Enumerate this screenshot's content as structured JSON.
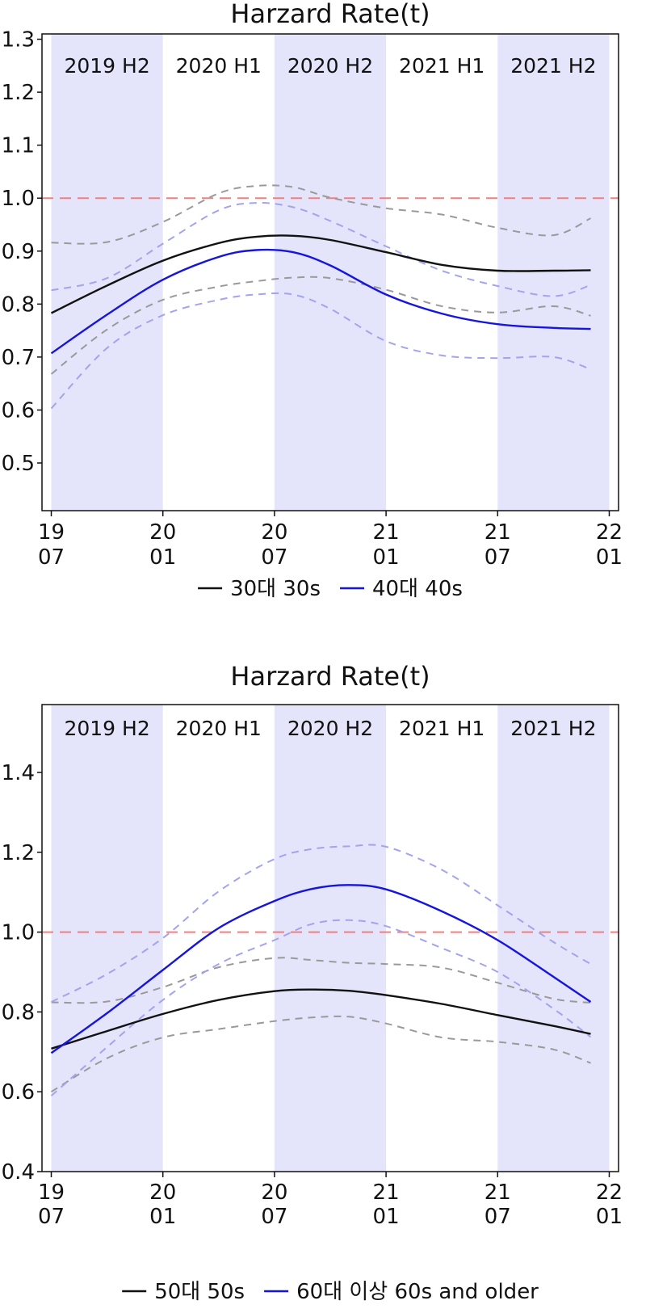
{
  "chart_data": [
    {
      "type": "line",
      "title": "Harzard Rate(t)",
      "xlabel": "",
      "ylabel": "",
      "x_ticks": [
        "19\n07",
        "20\n01",
        "20\n07",
        "21\n01",
        "21\n07",
        "22\n01"
      ],
      "x_tick_values": [
        0,
        6,
        12,
        18,
        24,
        30
      ],
      "xlim": [
        -0.5,
        30.5
      ],
      "ylim": [
        0.41,
        1.31
      ],
      "y_ticks": [
        0.5,
        0.6,
        0.7,
        0.8,
        0.9,
        1.0,
        1.1,
        1.2,
        1.3
      ],
      "y_tick_labels": [
        "0.5",
        "0.6",
        "0.7",
        "0.8",
        "0.9",
        "1.0",
        "1.1",
        "1.2",
        "1.3"
      ],
      "reference_line": {
        "y": 1.0,
        "color": "#f08080",
        "style": "dashed"
      },
      "period_bands": [
        {
          "label": "2019 H2",
          "from": 0,
          "to": 6,
          "shaded": true
        },
        {
          "label": "2020 H1",
          "from": 6,
          "to": 12,
          "shaded": false
        },
        {
          "label": "2020 H2",
          "from": 12,
          "to": 18,
          "shaded": true
        },
        {
          "label": "2021 H1",
          "from": 18,
          "to": 24,
          "shaded": false
        },
        {
          "label": "2021 H2",
          "from": 24,
          "to": 30,
          "shaded": true
        }
      ],
      "band_color": "#e4e4fa",
      "legend_position": "bottom",
      "series": [
        {
          "name": "30대 30s",
          "color": "#111111",
          "x": [
            0,
            3,
            6,
            9,
            11,
            13,
            15,
            18,
            21,
            24,
            27,
            29
          ],
          "values": [
            0.783,
            0.835,
            0.882,
            0.915,
            0.927,
            0.929,
            0.921,
            0.898,
            0.874,
            0.863,
            0.863,
            0.864
          ],
          "ci_lower": [
            0.668,
            0.752,
            0.808,
            0.833,
            0.843,
            0.85,
            0.849,
            0.827,
            0.796,
            0.784,
            0.796,
            0.778
          ],
          "ci_upper": [
            0.916,
            0.917,
            0.955,
            1.009,
            1.023,
            1.021,
            1.001,
            0.981,
            0.969,
            0.944,
            0.93,
            0.962
          ]
        },
        {
          "name": "40대 40s",
          "color": "#1515dd",
          "x": [
            0,
            3,
            6,
            9,
            11,
            13,
            15,
            18,
            21,
            24,
            27,
            29
          ],
          "values": [
            0.707,
            0.78,
            0.846,
            0.889,
            0.902,
            0.898,
            0.873,
            0.818,
            0.782,
            0.762,
            0.755,
            0.753
          ],
          "ci_lower": [
            0.603,
            0.717,
            0.779,
            0.808,
            0.818,
            0.818,
            0.791,
            0.73,
            0.703,
            0.698,
            0.7,
            0.677
          ],
          "ci_upper": [
            0.826,
            0.849,
            0.914,
            0.977,
            0.991,
            0.983,
            0.957,
            0.909,
            0.863,
            0.834,
            0.815,
            0.836
          ]
        }
      ]
    },
    {
      "type": "line",
      "title": "Harzard Rate(t)",
      "xlabel": "",
      "ylabel": "",
      "x_ticks": [
        "19\n07",
        "20\n01",
        "20\n07",
        "21\n01",
        "21\n07",
        "22\n01"
      ],
      "x_tick_values": [
        0,
        6,
        12,
        18,
        24,
        30
      ],
      "xlim": [
        -0.5,
        30.5
      ],
      "ylim": [
        0.4,
        1.57
      ],
      "y_ticks": [
        0.4,
        0.6,
        0.8,
        1.0,
        1.2,
        1.4
      ],
      "y_tick_labels": [
        "0.4",
        "0.6",
        "0.8",
        "1.0",
        "1.2",
        "1.4"
      ],
      "reference_line": {
        "y": 1.0,
        "color": "#f08080",
        "style": "dashed"
      },
      "period_bands": [
        {
          "label": "2019 H2",
          "from": 0,
          "to": 6,
          "shaded": true
        },
        {
          "label": "2020 H1",
          "from": 6,
          "to": 12,
          "shaded": false
        },
        {
          "label": "2020 H2",
          "from": 12,
          "to": 18,
          "shaded": true
        },
        {
          "label": "2021 H1",
          "from": 18,
          "to": 24,
          "shaded": false
        },
        {
          "label": "2021 H2",
          "from": 24,
          "to": 30,
          "shaded": true
        }
      ],
      "band_color": "#e4e4fa",
      "legend_position": "bottom",
      "series": [
        {
          "name": "50대 50s",
          "color": "#111111",
          "x": [
            0,
            3,
            6,
            9,
            12,
            14,
            16,
            18,
            21,
            24,
            27,
            29
          ],
          "values": [
            0.708,
            0.752,
            0.795,
            0.83,
            0.852,
            0.856,
            0.853,
            0.842,
            0.82,
            0.792,
            0.765,
            0.745
          ],
          "ci_lower": [
            0.6,
            0.684,
            0.736,
            0.757,
            0.777,
            0.786,
            0.788,
            0.771,
            0.736,
            0.725,
            0.706,
            0.672
          ],
          "ci_upper": [
            0.824,
            0.826,
            0.862,
            0.912,
            0.935,
            0.93,
            0.923,
            0.92,
            0.911,
            0.873,
            0.833,
            0.823
          ]
        },
        {
          "name": "60대 이상 60s and older",
          "color": "#1515dd",
          "x": [
            0,
            3,
            6,
            9,
            12,
            14,
            16,
            18,
            21,
            24,
            27,
            29
          ],
          "values": [
            0.697,
            0.797,
            0.905,
            1.01,
            1.078,
            1.108,
            1.118,
            1.107,
            1.052,
            0.98,
            0.888,
            0.825
          ],
          "ci_lower": [
            0.59,
            0.712,
            0.83,
            0.92,
            0.98,
            1.02,
            1.03,
            1.015,
            0.96,
            0.9,
            0.808,
            0.737
          ],
          "ci_upper": [
            0.825,
            0.895,
            0.985,
            1.102,
            1.183,
            1.208,
            1.215,
            1.214,
            1.156,
            1.067,
            0.975,
            0.92
          ]
        }
      ]
    }
  ]
}
